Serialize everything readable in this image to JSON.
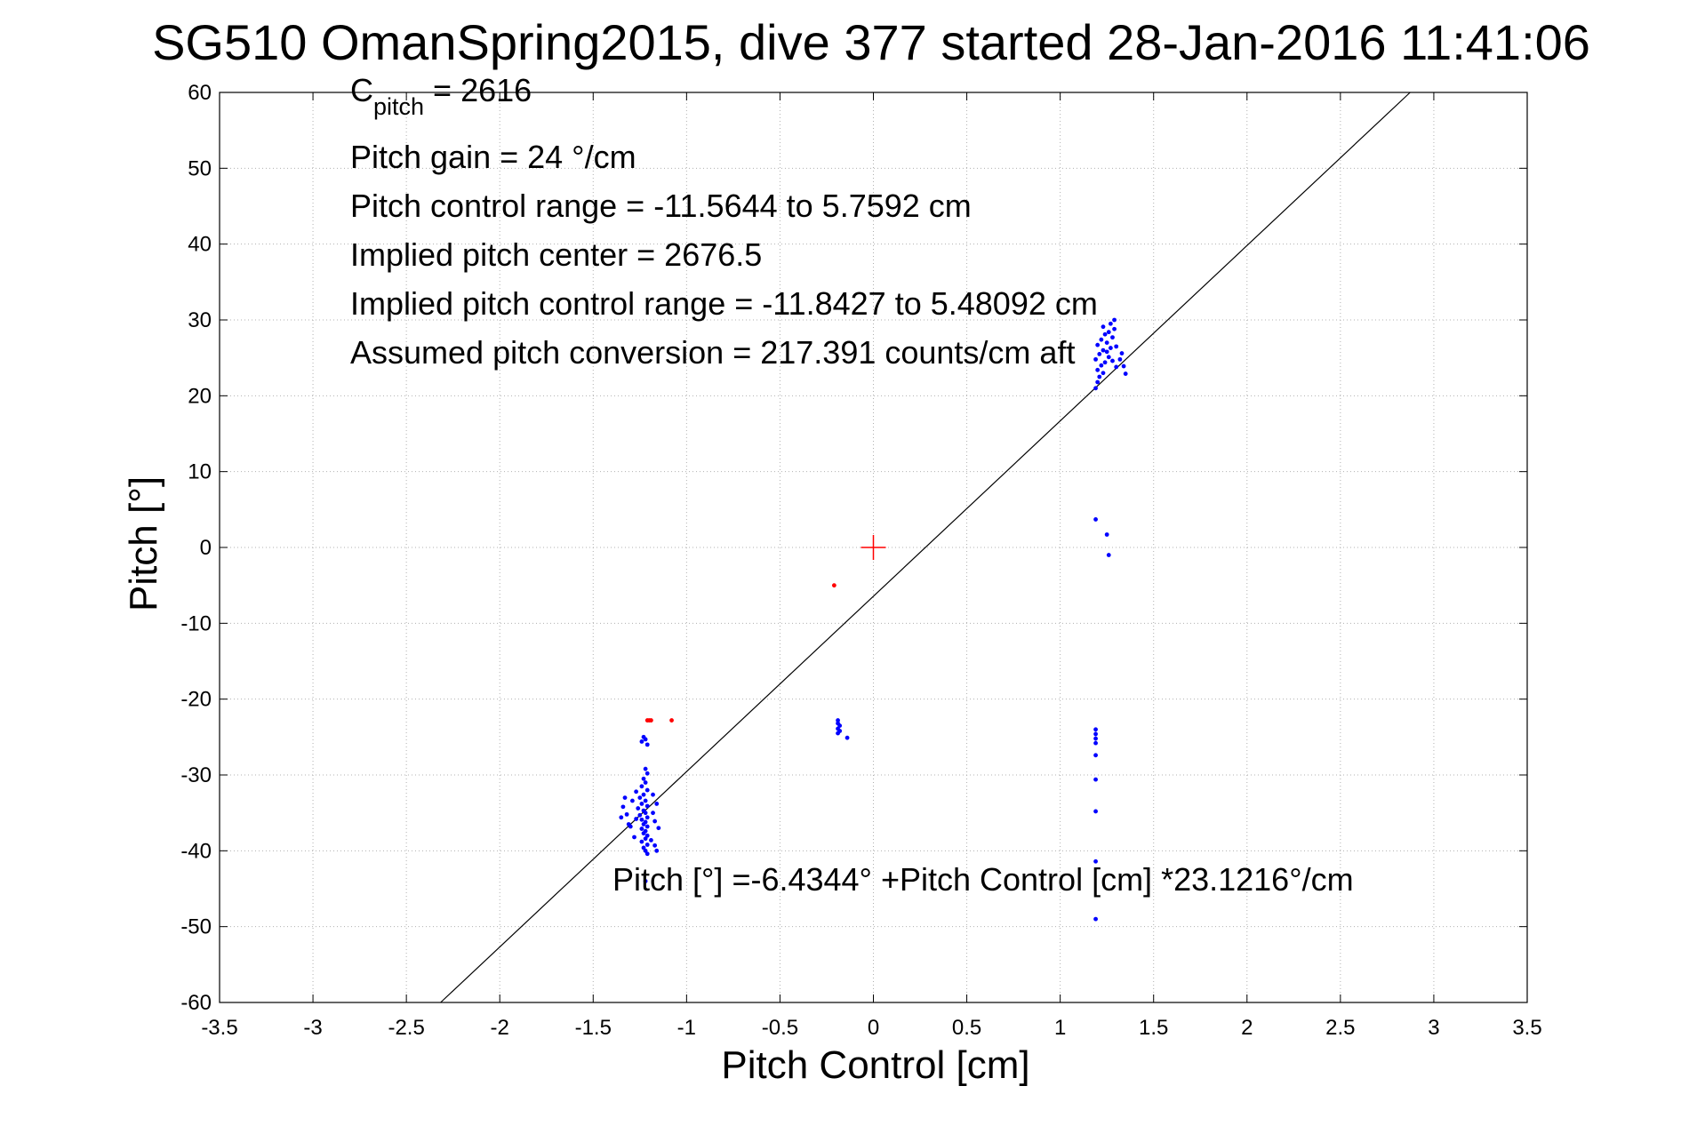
{
  "chart_data": {
    "type": "scatter",
    "title": "SG510 OmanSpring2015, dive 377 started 28-Jan-2016 11:41:06",
    "xlabel": "Pitch Control [cm]",
    "ylabel": "Pitch [°]",
    "xlim": [
      -3.5,
      3.5
    ],
    "ylim": [
      -60,
      60
    ],
    "xticks": [
      -3.5,
      -3,
      -2.5,
      -2,
      -1.5,
      -1,
      -0.5,
      0,
      0.5,
      1,
      1.5,
      2,
      2.5,
      3,
      3.5
    ],
    "yticks": [
      -60,
      -50,
      -40,
      -30,
      -20,
      -10,
      0,
      10,
      20,
      30,
      40,
      50,
      60
    ],
    "grid": true,
    "annotations": {
      "c_pitch_prefix": "C",
      "c_pitch_sub": "pitch",
      "c_pitch_value": " = 2616",
      "pitch_gain": "Pitch gain = 24 °/cm",
      "pitch_control_range": "Pitch control range = -11.5644 to 5.7592 cm",
      "implied_pitch_center": "Implied pitch center = 2676.5",
      "implied_pitch_control_range": "Implied pitch control range = -11.8427 to 5.48092 cm",
      "assumed_pitch_conversion": "Assumed pitch conversion = 217.391 counts/cm aft",
      "fit_equation": "Pitch [°] =-6.4344° +Pitch Control [cm] *23.1216°/cm"
    },
    "fit_line": {
      "intercept": -6.4344,
      "slope": 23.1216,
      "color": "#000000"
    },
    "center_marker": {
      "x": 0,
      "y": 0,
      "color": "#ff0000"
    },
    "series": [
      {
        "color": "#0000ff",
        "points": [
          [
            -1.23,
            -25.0
          ],
          [
            -1.22,
            -25.3
          ],
          [
            -1.24,
            -25.6
          ],
          [
            -1.21,
            -26.0
          ],
          [
            -1.22,
            -29.2
          ],
          [
            -1.21,
            -29.8
          ],
          [
            -1.23,
            -30.5
          ],
          [
            -1.22,
            -31.0
          ],
          [
            -1.24,
            -31.5
          ],
          [
            -1.21,
            -32.0
          ],
          [
            -1.23,
            -32.6
          ],
          [
            -1.25,
            -33.0
          ],
          [
            -1.22,
            -33.4
          ],
          [
            -1.24,
            -33.8
          ],
          [
            -1.21,
            -34.1
          ],
          [
            -1.26,
            -34.4
          ],
          [
            -1.23,
            -34.7
          ],
          [
            -1.22,
            -35.0
          ],
          [
            -1.25,
            -35.3
          ],
          [
            -1.21,
            -35.6
          ],
          [
            -1.24,
            -35.9
          ],
          [
            -1.22,
            -36.2
          ],
          [
            -1.23,
            -36.5
          ],
          [
            -1.21,
            -36.8
          ],
          [
            -1.24,
            -37.1
          ],
          [
            -1.22,
            -37.4
          ],
          [
            -1.23,
            -37.7
          ],
          [
            -1.21,
            -38.0
          ],
          [
            -1.22,
            -38.4
          ],
          [
            -1.24,
            -38.8
          ],
          [
            -1.21,
            -39.2
          ],
          [
            -1.23,
            -39.6
          ],
          [
            -1.22,
            -40.0
          ],
          [
            -1.21,
            -40.4
          ],
          [
            -1.27,
            -32.2
          ],
          [
            -1.29,
            -33.4
          ],
          [
            -1.27,
            -35.8
          ],
          [
            -1.3,
            -36.8
          ],
          [
            -1.28,
            -38.2
          ],
          [
            -1.33,
            -33.0
          ],
          [
            -1.34,
            -34.2
          ],
          [
            -1.32,
            -35.2
          ],
          [
            -1.35,
            -35.6
          ],
          [
            -1.31,
            -36.5
          ],
          [
            -1.18,
            -32.6
          ],
          [
            -1.16,
            -33.8
          ],
          [
            -1.18,
            -35.0
          ],
          [
            -1.17,
            -36.1
          ],
          [
            -1.15,
            -37.0
          ],
          [
            -1.19,
            -38.6
          ],
          [
            -1.17,
            -39.3
          ],
          [
            -1.16,
            -40.0
          ],
          [
            -1.22,
            -44.0
          ],
          [
            -0.19,
            -22.8
          ],
          [
            -0.19,
            -23.2
          ],
          [
            -0.18,
            -23.5
          ],
          [
            -0.19,
            -23.9
          ],
          [
            -0.18,
            -24.2
          ],
          [
            -0.19,
            -24.5
          ],
          [
            -0.14,
            -25.1
          ],
          [
            1.19,
            -24.0
          ],
          [
            1.19,
            -24.6
          ],
          [
            1.19,
            -25.2
          ],
          [
            1.19,
            -25.8
          ],
          [
            1.19,
            -27.4
          ],
          [
            1.19,
            -30.6
          ],
          [
            1.19,
            -34.8
          ],
          [
            1.19,
            -41.4
          ],
          [
            1.19,
            -49.0
          ],
          [
            1.19,
            3.7
          ],
          [
            1.25,
            1.7
          ],
          [
            1.26,
            -1.0
          ],
          [
            1.19,
            21.0
          ],
          [
            1.2,
            21.8
          ],
          [
            1.21,
            22.5
          ],
          [
            1.23,
            23.0
          ],
          [
            1.2,
            23.4
          ],
          [
            1.22,
            24.0
          ],
          [
            1.24,
            24.4
          ],
          [
            1.19,
            24.8
          ],
          [
            1.26,
            25.1
          ],
          [
            1.21,
            25.5
          ],
          [
            1.23,
            26.0
          ],
          [
            1.27,
            26.3
          ],
          [
            1.2,
            26.7
          ],
          [
            1.25,
            27.0
          ],
          [
            1.22,
            27.4
          ],
          [
            1.28,
            27.7
          ],
          [
            1.24,
            28.1
          ],
          [
            1.26,
            28.4
          ],
          [
            1.29,
            28.8
          ],
          [
            1.23,
            29.1
          ],
          [
            1.27,
            29.5
          ],
          [
            1.29,
            30.0
          ],
          [
            1.25,
            25.8
          ],
          [
            1.28,
            24.6
          ],
          [
            1.3,
            23.8
          ],
          [
            1.32,
            24.8
          ],
          [
            1.34,
            23.9
          ],
          [
            1.35,
            22.9
          ],
          [
            1.33,
            25.6
          ],
          [
            1.3,
            26.5
          ]
        ]
      },
      {
        "color": "#ff0000",
        "points": [
          [
            -1.21,
            -22.8
          ],
          [
            -1.2,
            -22.8
          ],
          [
            -1.19,
            -22.8
          ],
          [
            -1.08,
            -22.8
          ],
          [
            -0.21,
            -5.0
          ]
        ]
      }
    ]
  }
}
